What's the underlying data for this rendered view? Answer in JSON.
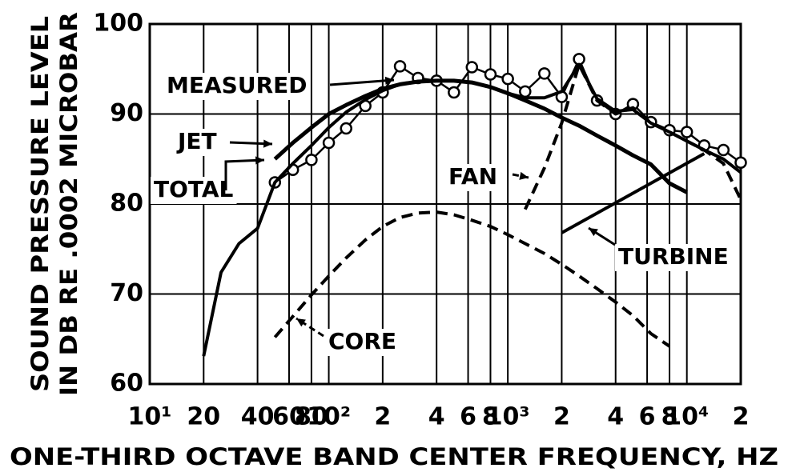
{
  "chart_data": {
    "type": "line",
    "xlabel": "ONE-THIRD OCTAVE BAND CENTER FREQUENCY, HZ",
    "ylabel": [
      "SOUND PRESSURE LEVEL",
      "IN DB RE .0002 MICROBAR"
    ],
    "xscale": "log",
    "xlim": [
      10,
      20000
    ],
    "ylim": [
      60,
      100
    ],
    "xticks": [
      {
        "value": 10,
        "label": "10¹"
      },
      20,
      40,
      60,
      80,
      {
        "value": 100,
        "label": "10²"
      },
      {
        "value": 200,
        "label": "2"
      },
      {
        "value": 400,
        "label": "4"
      },
      {
        "value": 600,
        "label": "6"
      },
      {
        "value": 800,
        "label": "8"
      },
      {
        "value": 1000,
        "label": "10³"
      },
      {
        "value": 2000,
        "label": "2"
      },
      {
        "value": 4000,
        "label": "4"
      },
      {
        "value": 6000,
        "label": "6"
      },
      {
        "value": 8000,
        "label": "8"
      },
      {
        "value": 10000,
        "label": "10⁴"
      },
      {
        "value": 20000,
        "label": "2"
      }
    ],
    "yticks": [
      60,
      70,
      80,
      90,
      100
    ],
    "grid": true,
    "series": [
      {
        "name": "MEASURED",
        "color": "#000000",
        "style": "solid",
        "marker": "circle",
        "x": [
          50,
          63,
          80,
          100,
          125,
          160,
          200,
          250,
          315,
          400,
          500,
          630,
          800,
          1000,
          1250,
          1600,
          2000,
          2500,
          3150,
          4000,
          5000,
          6300,
          8000,
          10000,
          12500,
          16000,
          20000
        ],
        "values": [
          82.4,
          83.8,
          84.9,
          86.8,
          88.4,
          90.9,
          92.4,
          95.3,
          94.0,
          93.7,
          92.4,
          95.2,
          94.4,
          93.9,
          92.5,
          94.5,
          91.9,
          96.1,
          91.5,
          90.0,
          91.1,
          89.1,
          88.2,
          88.0,
          86.5,
          86.0,
          84.6
        ]
      },
      {
        "name": "JET",
        "color": "#000000",
        "style": "solid",
        "x": [
          50,
          63,
          80,
          100,
          125,
          160,
          200,
          250,
          315,
          400,
          500,
          630,
          800,
          1000,
          1250,
          1600,
          2000,
          2500,
          3150,
          4000,
          5000,
          6300,
          8000,
          10000
        ],
        "values": [
          85.0,
          86.8,
          88.5,
          90.0,
          91.0,
          92.0,
          92.8,
          93.3,
          93.6,
          93.7,
          93.7,
          93.5,
          93.0,
          92.3,
          91.5,
          90.6,
          89.6,
          88.7,
          87.6,
          86.5,
          85.4,
          84.4,
          82.3,
          81.3
        ]
      },
      {
        "name": "TOTAL",
        "color": "#000000",
        "style": "solid",
        "x": [
          20,
          25,
          31.5,
          40,
          50,
          63,
          80,
          100,
          125,
          160,
          200,
          250,
          315,
          400,
          500,
          630,
          800,
          1000,
          1250,
          1600,
          2000,
          2500,
          3150,
          4000,
          5000,
          6300,
          8000,
          10000,
          12500,
          16000,
          20000
        ],
        "values": [
          63.1,
          72.4,
          75.6,
          77.3,
          82.4,
          84.5,
          86.5,
          88.5,
          90.2,
          91.6,
          92.6,
          93.3,
          93.6,
          93.7,
          93.7,
          93.5,
          93.0,
          92.3,
          91.8,
          91.8,
          92.5,
          95.5,
          91.7,
          90.3,
          90.5,
          89.0,
          88.0,
          87.0,
          86.0,
          85.0,
          83.5
        ]
      },
      {
        "name": "FAN",
        "color": "#000000",
        "style": "dashed",
        "x": [
          1250,
          1600,
          2000,
          2500,
          3150,
          4000,
          5000,
          6300,
          8000,
          10000,
          12500,
          16000,
          20000
        ],
        "values": [
          79.4,
          84.0,
          89.0,
          95.5,
          91.5,
          90.0,
          90.7,
          89.0,
          88.0,
          87.0,
          86.0,
          84.5,
          80.5
        ]
      },
      {
        "name": "TURBINE",
        "color": "#000000",
        "style": "solid",
        "x": [
          2000,
          12500
        ],
        "values": [
          76.8,
          85.6
        ]
      },
      {
        "name": "CORE",
        "color": "#000000",
        "style": "dashed",
        "x": [
          50,
          63,
          80,
          100,
          125,
          160,
          200,
          250,
          315,
          400,
          500,
          630,
          800,
          1000,
          1250,
          1600,
          2000,
          2500,
          3150,
          4000,
          5000,
          6300,
          8000
        ],
        "values": [
          65.2,
          67.5,
          69.9,
          72.0,
          74.0,
          76.0,
          77.5,
          78.5,
          79.0,
          79.1,
          78.8,
          78.2,
          77.5,
          76.6,
          75.6,
          74.5,
          73.3,
          72.0,
          70.6,
          69.1,
          67.6,
          65.6,
          64.2
        ]
      }
    ]
  }
}
